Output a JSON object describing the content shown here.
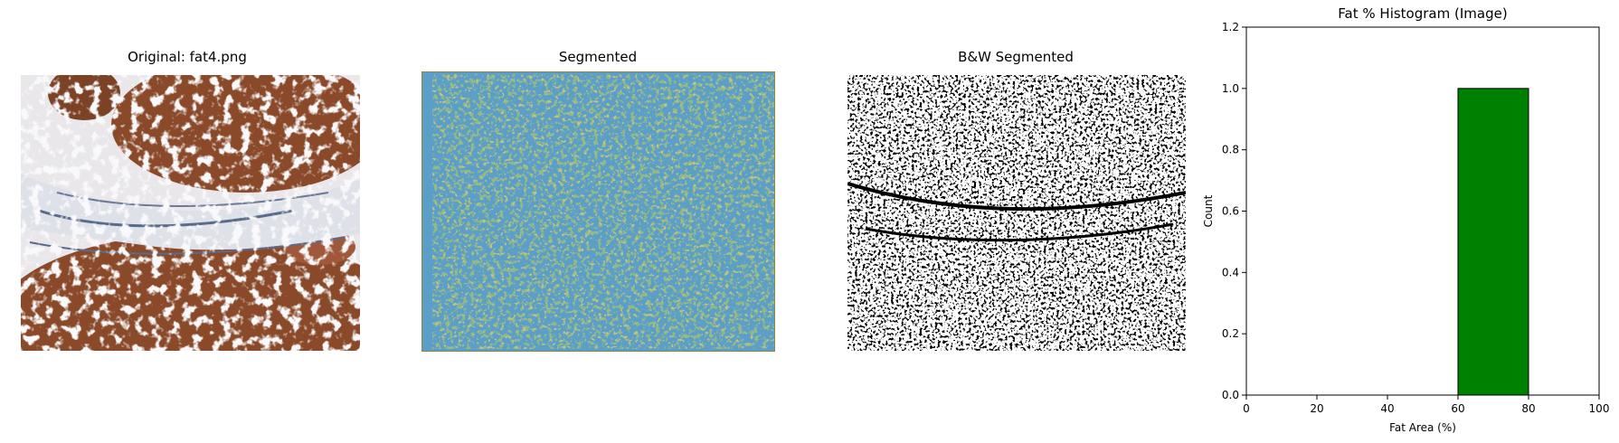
{
  "panels": {
    "original": {
      "title": "Original: fat4.png"
    },
    "segmented": {
      "title": "Segmented"
    },
    "bw": {
      "title": "B&W Segmented"
    }
  },
  "colors": {
    "segment_background": "#5b9fc8",
    "segment_green": "#4a7c3a",
    "segment_olive": "#8f8a3a",
    "tissue_brown": "#8a4a2a",
    "tissue_white": "#f2f2f4",
    "tissue_blue": "#5a6a8a",
    "bar_fill": "#008000",
    "bar_edge": "#000000"
  },
  "chart_data": {
    "type": "bar",
    "title": "Fat % Histogram (Image)",
    "xlabel": "Fat Area (%)",
    "ylabel": "Count",
    "xlim": [
      0,
      100
    ],
    "ylim": [
      0,
      1.2
    ],
    "xticks": [
      "0",
      "20",
      "40",
      "60",
      "80",
      "100"
    ],
    "yticks": [
      "0.0",
      "0.2",
      "0.4",
      "0.6",
      "0.8",
      "1.0",
      "1.2"
    ],
    "bins": [
      {
        "start": 60,
        "end": 80,
        "count": 1
      }
    ]
  }
}
